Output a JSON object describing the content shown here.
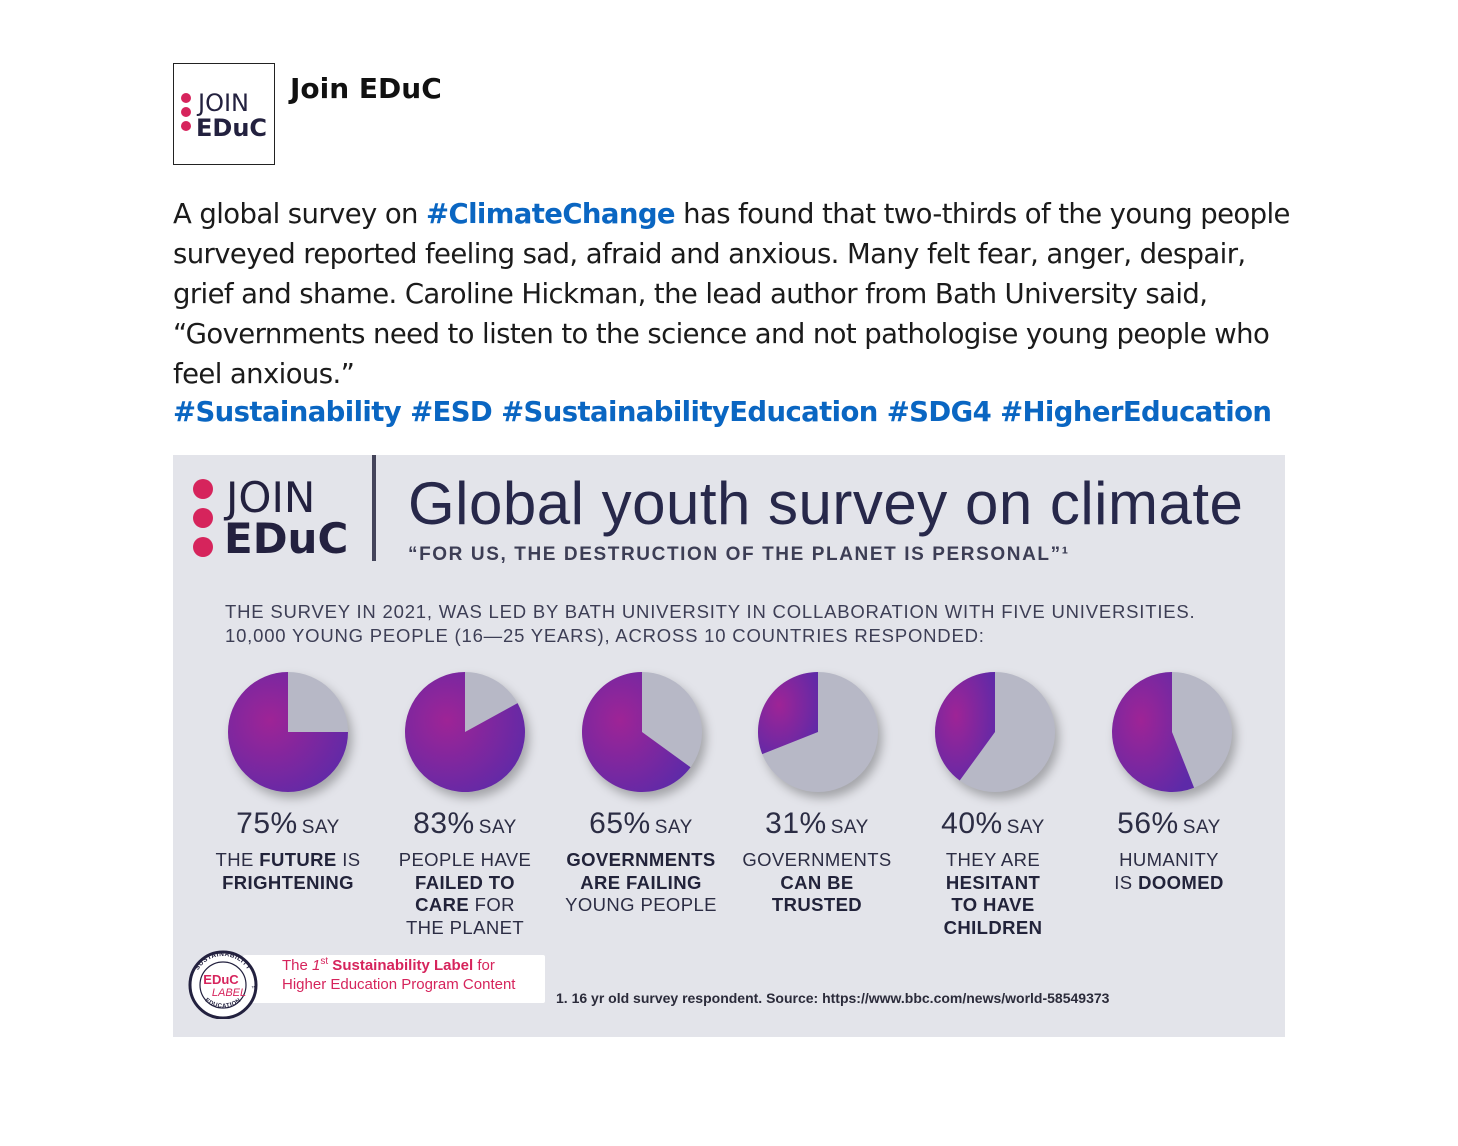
{
  "post": {
    "author": "Join EDuC",
    "avatar_logo": {
      "line1": "JOIN",
      "line2": "EDuC"
    },
    "body": {
      "part1": "A global survey on ",
      "tag1": "#ClimateChange",
      "part2": " has found that two-thirds of the young people surveyed reported feeling sad, afraid and anxious. Many felt fear, anger, despair, grief and shame. Caroline Hickman, the lead author from Bath University said, “Governments need to listen to the science and not pathologise young people who feel anxious.”"
    },
    "hashtags": "#Sustainability #ESD #SustainabilityEducation #SDG4 #HigherEducation"
  },
  "infographic": {
    "logo": {
      "line1": "JOIN",
      "line2": "EDuC"
    },
    "title": "Global youth survey on climate",
    "subtitle": "“FOR US, THE DESTRUCTION OF THE PLANET IS PERSONAL”¹",
    "intro_line1": "THE SURVEY IN 2021, WAS LED BY BATH UNIVERSITY IN COLLABORATION WITH FIVE UNIVERSITIES.",
    "intro_line2": "10,000 YOUNG PEOPLE (16—25 YEARS), ACROSS 10 COUNTRIES RESPONDED:",
    "footnote": "1. 16 yr old survey respondent. Source: https://www.bbc.com/news/world-58549373",
    "label_badge": {
      "ring_top": "SUSTAINABILITY",
      "ring_bottom": "EDUCATION",
      "center1": "EDuC",
      "center2": "LABEL",
      "tm": "™",
      "line1_pre": "The ",
      "line1_num": "1",
      "line1_sup": "st",
      "line1_bold": " Sustainability Label",
      "line1_post": " for",
      "line2": "Higher Education Program Content"
    },
    "colors": {
      "pie_fill_start": "#9e2496",
      "pie_fill_end": "#5d2aa8",
      "pie_rest": "#b7b8c6",
      "accent": "#d6245c",
      "dark": "#23213f"
    }
  },
  "chart_data": {
    "type": "pie",
    "title": "Global youth survey on climate",
    "unit_suffix": " SAY",
    "values": [
      75,
      83,
      65,
      31,
      40,
      56
    ],
    "pct_labels": [
      "75%",
      "83%",
      "65%",
      "31%",
      "40%",
      "56%"
    ],
    "say": "SAY",
    "descriptions": [
      [
        {
          "t": "THE ",
          "b": false
        },
        {
          "t": "FUTURE",
          "b": true
        },
        {
          "t": " IS",
          "b": false
        },
        {
          "br": true
        },
        {
          "t": "FRIGHTENING",
          "b": true
        }
      ],
      [
        {
          "t": "PEOPLE HAVE",
          "b": false
        },
        {
          "br": true
        },
        {
          "t": "FAILED TO",
          "b": true
        },
        {
          "br": true
        },
        {
          "t": "CARE",
          "b": true
        },
        {
          "t": " FOR",
          "b": false
        },
        {
          "br": true
        },
        {
          "t": "THE PLANET",
          "b": false
        }
      ],
      [
        {
          "t": "GOVERNMENTS",
          "b": true
        },
        {
          "br": true
        },
        {
          "t": "ARE FAILING",
          "b": true
        },
        {
          "br": true
        },
        {
          "t": "YOUNG PEOPLE",
          "b": false
        }
      ],
      [
        {
          "t": "GOVERNMENTS",
          "b": false
        },
        {
          "br": true
        },
        {
          "t": "CAN BE",
          "b": true
        },
        {
          "br": true
        },
        {
          "t": "TRUSTED",
          "b": true
        }
      ],
      [
        {
          "t": "THEY ARE",
          "b": false
        },
        {
          "br": true
        },
        {
          "t": "HESITANT",
          "b": true
        },
        {
          "br": true
        },
        {
          "t": "TO HAVE",
          "b": true
        },
        {
          "br": true
        },
        {
          "t": "CHILDREN",
          "b": true
        }
      ],
      [
        {
          "t": "HUMANITY",
          "b": false
        },
        {
          "br": true
        },
        {
          "t": "IS ",
          "b": false
        },
        {
          "t": "DOOMED",
          "b": true
        }
      ]
    ]
  }
}
